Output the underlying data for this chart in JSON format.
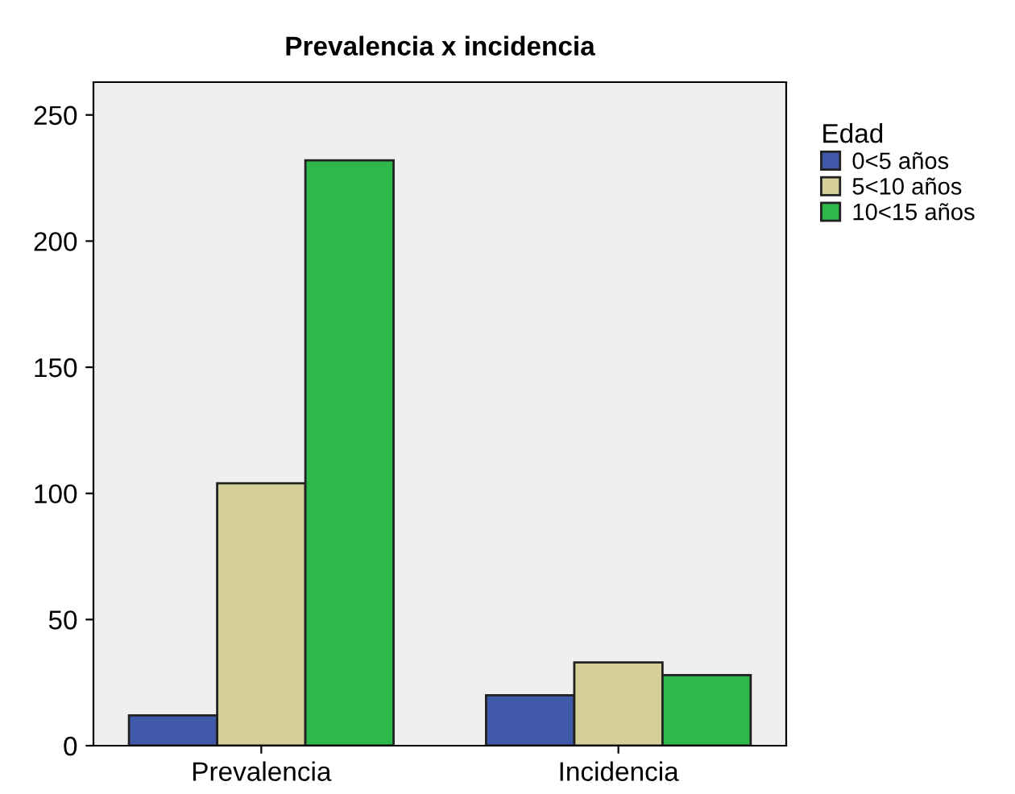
{
  "chart_data": {
    "type": "bar",
    "title": "Prevalencia x incidencia",
    "legend_title": "Edad",
    "categories": [
      "Prevalencia",
      "Incidencia"
    ],
    "series": [
      {
        "name": "0<5 años",
        "color": "#3f58a8",
        "values": [
          12,
          20
        ]
      },
      {
        "name": "5<10 años",
        "color": "#d4cf98",
        "values": [
          104,
          33
        ]
      },
      {
        "name": "10<15 años",
        "color": "#2fb84a",
        "values": [
          232,
          28
        ]
      }
    ],
    "ylim": [
      0,
      263
    ],
    "yticks": [
      0,
      50,
      100,
      150,
      200,
      250
    ],
    "grid": false,
    "legend": "right"
  }
}
